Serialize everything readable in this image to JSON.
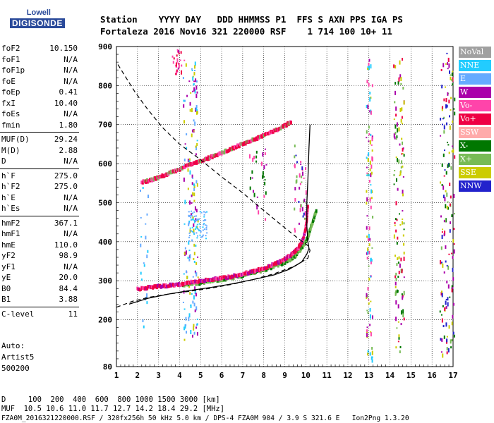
{
  "logo": {
    "line1": "Lowell",
    "line2": "DIGISONDE"
  },
  "header": {
    "line1": "Station    YYYY DAY   DDD HHMMSS P1  FFS S AXN PPS IGA PS",
    "line2": "Fortaleza 2016 Nov16 321 220000 RSF    1 714 100 10+ 11"
  },
  "params": [
    {
      "name": "foF2",
      "value": "10.150"
    },
    {
      "name": "foF1",
      "value": "N/A"
    },
    {
      "name": "foF1p",
      "value": "N/A"
    },
    {
      "name": "foE",
      "value": "N/A"
    },
    {
      "name": "foEp",
      "value": "0.41"
    },
    {
      "name": "fxI",
      "value": "10.40"
    },
    {
      "name": "foEs",
      "value": "N/A"
    },
    {
      "name": "fmin",
      "value": "1.80"
    },
    {
      "name": "MUF(D)",
      "value": "29.24"
    },
    {
      "name": "M(D)",
      "value": "2.88"
    },
    {
      "name": "D",
      "value": "N/A"
    },
    {
      "name": "h`F",
      "value": "275.0"
    },
    {
      "name": "h`F2",
      "value": "275.0"
    },
    {
      "name": "h`E",
      "value": "N/A"
    },
    {
      "name": "h`Es",
      "value": "N/A"
    },
    {
      "name": "hmF2",
      "value": "367.1"
    },
    {
      "name": "hmF1",
      "value": "N/A"
    },
    {
      "name": "hmE",
      "value": "110.0"
    },
    {
      "name": "yF2",
      "value": "98.9"
    },
    {
      "name": "yF1",
      "value": "N/A"
    },
    {
      "name": "yE",
      "value": "20.0"
    },
    {
      "name": "B0",
      "value": "84.4"
    },
    {
      "name": "B1",
      "value": "3.88"
    },
    {
      "name": "C-level",
      "value": "11"
    }
  ],
  "auto": {
    "line1": "Auto:",
    "line2": "Artist5",
    "line3": "500200"
  },
  "footer": {
    "line1": "D     100  200  400  600  800 1000 1500 3000 [km]",
    "line2": "MUF  10.5 10.6 11.0 11.7 12.7 14.2 18.4 29.2 [MHz]",
    "line3": "FZA0M_2016321220000.RSF / 320fx256h 50 kHz 5.0 km / DPS-4 FZA0M 904 / 3.9 S 321.6 E   Ion2Png 1.3.20"
  },
  "legend": [
    {
      "label": "NoVal",
      "color": "#a0a0a0"
    },
    {
      "label": "NNE",
      "color": "#22ccff"
    },
    {
      "label": "E",
      "color": "#66aaff"
    },
    {
      "label": "W",
      "color": "#aa00aa"
    },
    {
      "label": "Vo-",
      "color": "#ff44aa"
    },
    {
      "label": "Vo+",
      "color": "#ee0044"
    },
    {
      "label": "SSW",
      "color": "#ffaaaa"
    },
    {
      "label": "X-",
      "color": "#007700"
    },
    {
      "label": "X+",
      "color": "#77bb55"
    },
    {
      "label": "SSE",
      "color": "#cccc00"
    },
    {
      "label": "NNW",
      "color": "#2222cc"
    }
  ],
  "chart_data": {
    "type": "scatter",
    "x_range": [
      1,
      17
    ],
    "y_range": [
      80,
      900
    ],
    "x_ticks": [
      "1",
      "2",
      "3",
      "4",
      "5",
      "6",
      "7",
      "8",
      "9",
      "10",
      "11",
      "12",
      "13",
      "14",
      "15",
      "16",
      "17"
    ],
    "y_ticks": [
      "80",
      "200",
      "300",
      "400",
      "500",
      "600",
      "700",
      "800",
      "900"
    ],
    "grid": true,
    "traces": {
      "O_lower": [
        [
          2.0,
          278
        ],
        [
          2.5,
          281
        ],
        [
          3.0,
          284
        ],
        [
          3.5,
          287
        ],
        [
          4.0,
          290
        ],
        [
          4.5,
          294
        ],
        [
          5.0,
          298
        ],
        [
          5.5,
          302
        ],
        [
          6.0,
          306
        ],
        [
          6.5,
          310
        ],
        [
          7.0,
          316
        ],
        [
          7.5,
          323
        ],
        [
          8.0,
          331
        ],
        [
          8.5,
          341
        ],
        [
          9.0,
          354
        ],
        [
          9.3,
          365
        ],
        [
          9.6,
          380
        ],
        [
          9.8,
          397
        ],
        [
          9.95,
          420
        ],
        [
          10.05,
          455
        ],
        [
          10.1,
          490
        ]
      ],
      "O_upper": [
        [
          2.2,
          552
        ],
        [
          2.6,
          556
        ],
        [
          3.0,
          563
        ],
        [
          3.5,
          574
        ],
        [
          4.0,
          585
        ],
        [
          4.5,
          596
        ],
        [
          5.0,
          606
        ],
        [
          5.5,
          616
        ],
        [
          6.0,
          627
        ],
        [
          6.5,
          638
        ],
        [
          7.0,
          649
        ],
        [
          7.5,
          660
        ],
        [
          8.0,
          671
        ],
        [
          8.5,
          683
        ],
        [
          9.0,
          696
        ],
        [
          9.3,
          706
        ]
      ],
      "X_lower": [
        [
          4.0,
          288
        ],
        [
          5.0,
          293
        ],
        [
          6.0,
          302
        ],
        [
          7.0,
          312
        ],
        [
          8.0,
          326
        ],
        [
          9.0,
          345
        ],
        [
          9.5,
          362
        ],
        [
          9.8,
          382
        ],
        [
          10.1,
          410
        ],
        [
          10.3,
          445
        ],
        [
          10.5,
          478
        ]
      ],
      "profile_solid": [
        [
          1.6,
          240
        ],
        [
          2.5,
          255
        ],
        [
          3.5,
          266
        ],
        [
          4.5,
          275
        ],
        [
          5.5,
          283
        ],
        [
          6.5,
          292
        ],
        [
          7.5,
          303
        ],
        [
          8.5,
          315
        ],
        [
          9.2,
          329
        ],
        [
          9.8,
          348
        ],
        [
          10.05,
          368
        ],
        [
          10.15,
          383
        ],
        [
          10.1,
          400
        ],
        [
          10.05,
          440
        ],
        [
          10.05,
          500
        ],
        [
          10.1,
          560
        ],
        [
          10.15,
          640
        ],
        [
          10.2,
          700
        ]
      ],
      "profile_dashed": [
        [
          1.0,
          232
        ],
        [
          1.8,
          248
        ],
        [
          2.6,
          258
        ],
        [
          3.5,
          266
        ],
        [
          4.5,
          273
        ],
        [
          5.5,
          281
        ],
        [
          6.5,
          291
        ],
        [
          7.5,
          303
        ],
        [
          8.5,
          318
        ],
        [
          9.5,
          338
        ],
        [
          10.1,
          358
        ],
        [
          10.2,
          378
        ],
        [
          10.1,
          390
        ],
        [
          9.6,
          410
        ],
        [
          8.9,
          440
        ],
        [
          8.0,
          480
        ],
        [
          7.0,
          525
        ],
        [
          6.0,
          566
        ],
        [
          5.0,
          610
        ],
        [
          4.0,
          650
        ],
        [
          3.2,
          692
        ],
        [
          2.5,
          738
        ],
        [
          1.9,
          782
        ],
        [
          1.4,
          825
        ],
        [
          1.0,
          860
        ]
      ]
    }
  }
}
